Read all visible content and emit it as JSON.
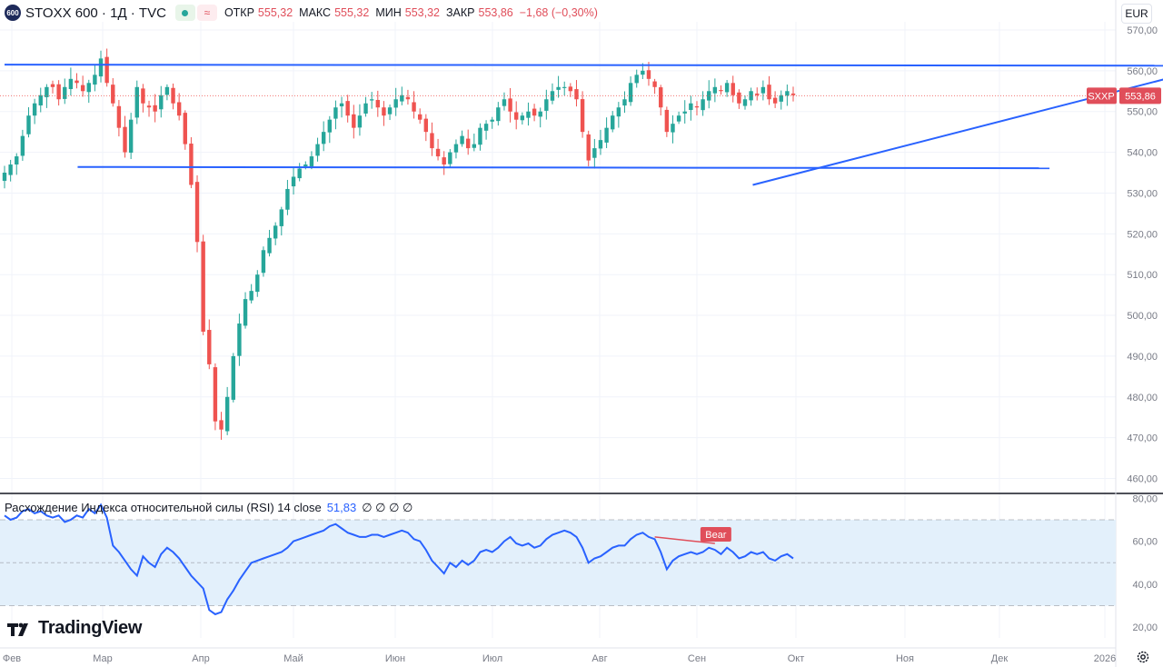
{
  "symbol": {
    "badge": "600",
    "title": "STOXX 600 · 1Д · TVC",
    "ohlc": [
      {
        "label": "ОТКР",
        "value": "555,32"
      },
      {
        "label": "МАКС",
        "value": "555,32"
      },
      {
        "label": "МИН",
        "value": "553,32"
      },
      {
        "label": "ЗАКР",
        "value": "553,86"
      },
      {
        "label": "",
        "value": "−1,68 (−0,30%)"
      }
    ]
  },
  "currency_button": "EUR",
  "rsi_legend": {
    "name": "Расхождение Индекса относительной силы (RSI) 14 close",
    "value": "51,83",
    "extra": "∅ ∅ ∅ ∅"
  },
  "brand": "TradingView",
  "colors": {
    "up": "#26a69a",
    "down": "#ef5350",
    "trendline": "#2962ff",
    "rsi_line": "#2962ff",
    "rsi_band": "#e3f0fb",
    "price_badge": "#e04e5a",
    "bear_label": "#e04e5a"
  },
  "chart_data": [
    {
      "type": "candlestick",
      "title": "STOXX 600",
      "y_axis": {
        "ticks": [
          "570,00",
          "560,00",
          "550,00",
          "540,00",
          "530,00",
          "520,00",
          "510,00",
          "500,00",
          "490,00",
          "480,00",
          "470,00",
          "460,00"
        ],
        "ylim": [
          457,
          572
        ]
      },
      "x_axis": {
        "ticks": [
          "Фев",
          "Мар",
          "Апр",
          "Май",
          "Июн",
          "Июл",
          "Авг",
          "Сен",
          "Окт",
          "Ноя",
          "Дек",
          "2026"
        ]
      },
      "grid": true,
      "last_price": {
        "symbol": "SXXP",
        "value": "553,86",
        "numeric": 553.86
      },
      "horizontal_lines": [
        561.3,
        536.3
      ],
      "trendlines": [
        {
          "from": {
            "date": "2025-02-17",
            "price": 536.4
          },
          "to": {
            "date": "2025-10-01",
            "price": 536.1
          }
        },
        {
          "from": {
            "date": "2025-01-31",
            "price": 561.5
          },
          "to": {
            "date": "2025-12-18",
            "price": 561.2
          }
        },
        {
          "from": {
            "date": "2025-07-24",
            "price": 532.0
          },
          "to": {
            "date": "2025-12-18",
            "price": 571.8
          }
        }
      ],
      "candles": {
        "start_date": "2025-01-31",
        "closes": [
          535,
          537,
          539,
          544,
          549,
          552,
          554,
          556,
          556,
          553,
          556,
          558,
          557,
          555,
          557,
          559,
          563,
          557,
          552,
          546,
          540,
          548,
          556,
          552,
          551,
          550,
          554,
          556,
          552,
          549,
          542,
          532,
          518,
          496,
          488,
          474,
          472,
          480,
          490,
          498,
          504,
          506,
          510,
          516,
          519,
          522,
          526,
          531,
          534,
          536,
          537,
          539,
          542,
          545,
          548,
          551,
          552,
          549,
          546,
          549,
          552,
          553,
          551,
          549,
          551,
          553,
          554,
          553,
          550,
          548,
          545,
          541,
          539,
          537,
          540,
          542,
          544,
          541,
          542,
          546,
          547,
          548,
          551,
          553,
          550,
          548,
          549,
          550,
          549,
          550,
          553,
          555,
          556,
          556,
          555,
          553,
          545,
          538,
          541,
          543,
          546,
          549,
          551,
          553,
          557,
          559,
          560,
          558,
          556,
          551,
          545,
          547,
          549,
          550,
          552,
          551,
          553,
          555,
          556,
          555,
          557,
          554,
          552,
          553,
          555,
          554,
          556,
          553,
          552,
          554,
          555,
          554
        ]
      }
    },
    {
      "type": "line",
      "title": "RSI 14 close",
      "y_axis": {
        "ticks": [
          "80,00",
          "60,00",
          "40,00",
          "20,00"
        ],
        "ylim": [
          15,
          81
        ]
      },
      "band": [
        30,
        70
      ],
      "series_color": "#2962ff",
      "annotation": {
        "label": "Bear"
      },
      "values": [
        72,
        70,
        71,
        74,
        75,
        73,
        74,
        72,
        71,
        72,
        69,
        70,
        72,
        71,
        75,
        73,
        77,
        71,
        58,
        55,
        51,
        47,
        44,
        53,
        50,
        48,
        54,
        57,
        55,
        52,
        48,
        44,
        41,
        38,
        28,
        26,
        27,
        33,
        37,
        42,
        46,
        50,
        51,
        52,
        53,
        54,
        55,
        57,
        60,
        61,
        62,
        63,
        64,
        65,
        67,
        68,
        66,
        64,
        63,
        62,
        62,
        63,
        63,
        62,
        63,
        64,
        65,
        64,
        61,
        60,
        56,
        51,
        48,
        45,
        50,
        48,
        51,
        49,
        51,
        55,
        56,
        55,
        57,
        60,
        62,
        59,
        58,
        59,
        57,
        58,
        61,
        63,
        64,
        65,
        64,
        62,
        57,
        50,
        52,
        53,
        55,
        57,
        58,
        58,
        61,
        63,
        64,
        62,
        61,
        55,
        47,
        51,
        53,
        54,
        55,
        54,
        55,
        57,
        56,
        54,
        57,
        55,
        52,
        53,
        55,
        54,
        55,
        52,
        51,
        53,
        54,
        52
      ]
    }
  ]
}
